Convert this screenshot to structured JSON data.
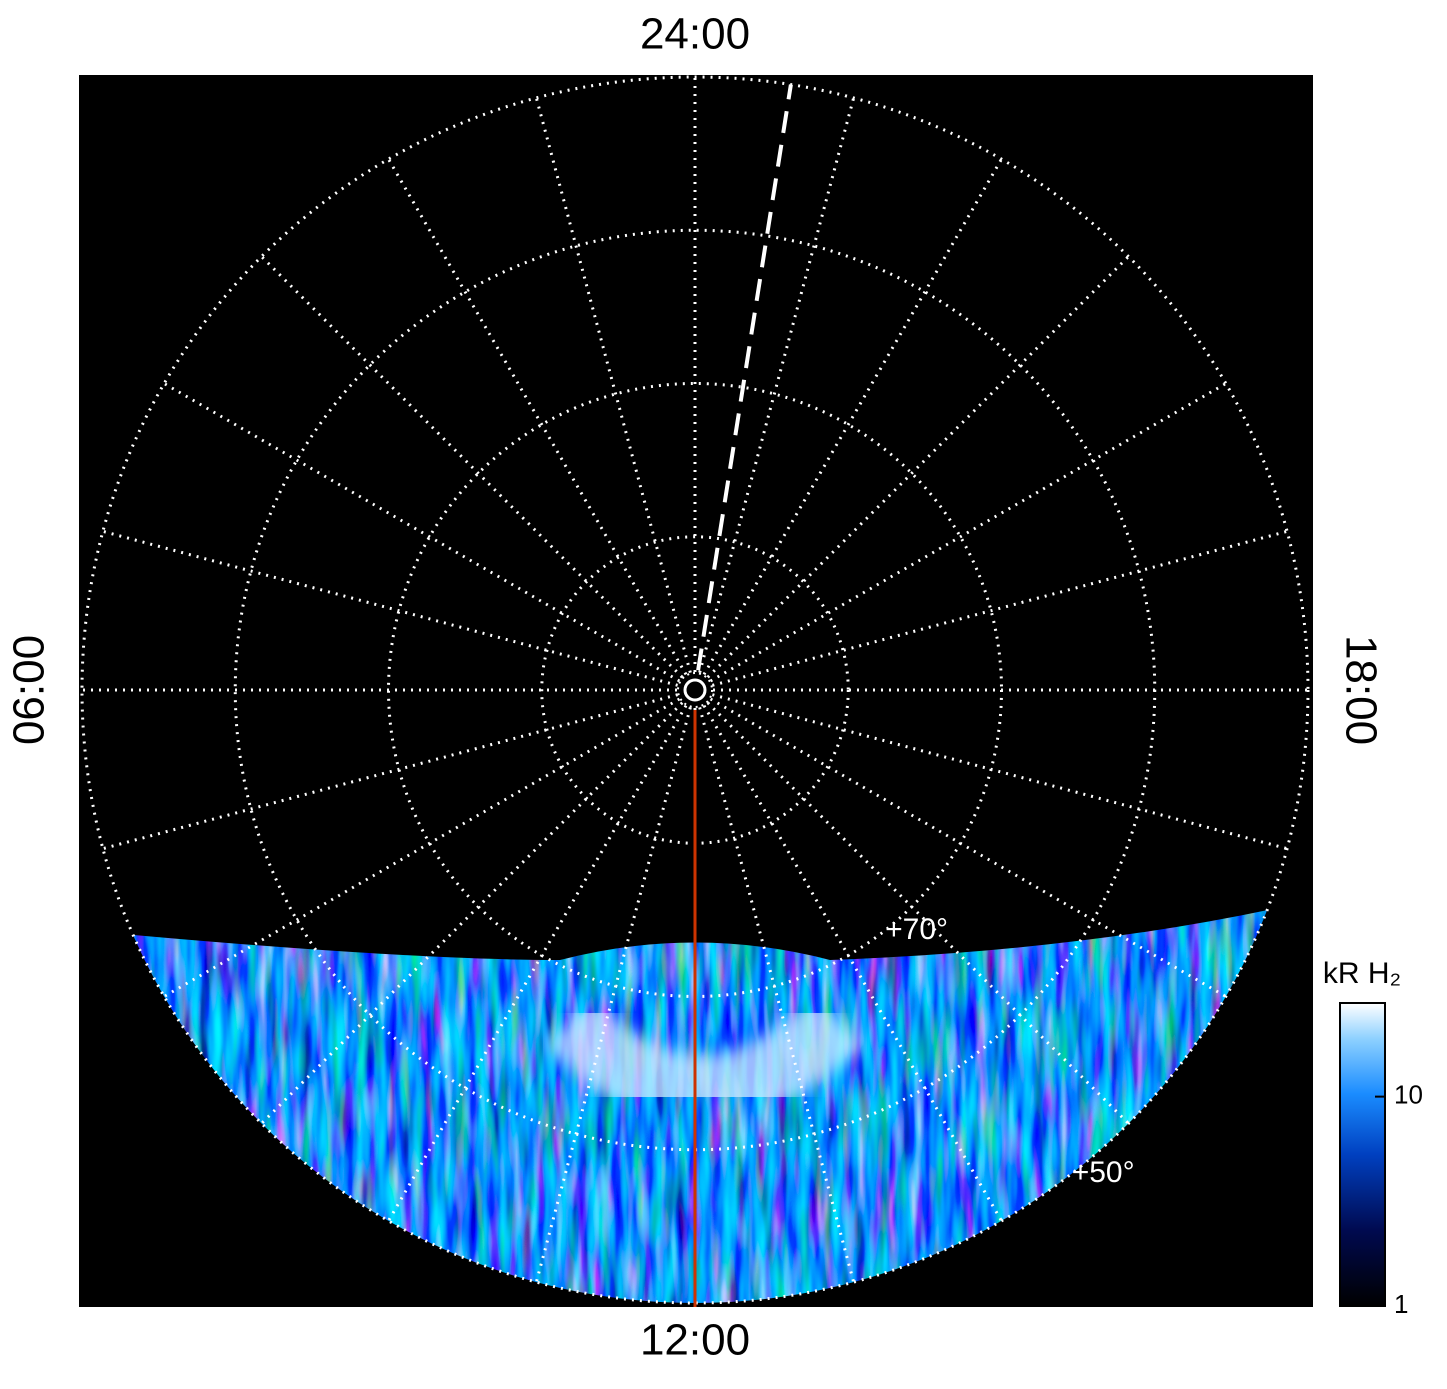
{
  "chart_data": {
    "type": "polar",
    "theta_labels": [
      {
        "value": 24,
        "label": "24:00"
      },
      {
        "value": 6,
        "label": "06:00"
      },
      {
        "value": 12,
        "label": "12:00"
      },
      {
        "value": 18,
        "label": "18:00"
      }
    ],
    "theta_grid_step_hours": 1,
    "rlim": [
      90,
      50
    ],
    "rgrid": [
      80,
      70,
      60,
      50
    ],
    "rticks": [
      {
        "value": 70,
        "label": "+70°"
      },
      {
        "value": 50,
        "label": "+50°"
      }
    ],
    "meridians": [
      {
        "local_time": 23.4,
        "color": "#ffffff",
        "dashed": true
      },
      {
        "local_time": 12,
        "color": "#cc3300",
        "dashed": false
      }
    ],
    "colorbar": {
      "label": "kR H₂",
      "scale": "log",
      "lim": [
        1,
        28
      ],
      "ticks": [
        1,
        10
      ]
    }
  }
}
